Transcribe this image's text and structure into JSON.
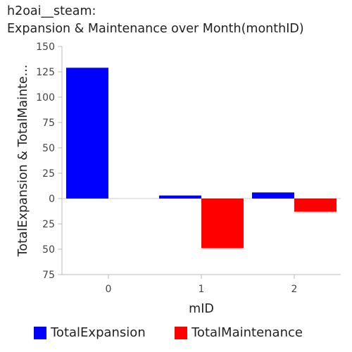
{
  "title_lines": [
    "h2oai__steam:",
    "Expansion & Maintenance over Month(monthID)"
  ],
  "chart_data": {
    "type": "bar",
    "title": "h2oai__steam: Expansion & Maintenance over Month(monthID)",
    "xlabel": "mID",
    "ylabel": "TotalExpansion & TotalMainte...",
    "categories": [
      "0",
      "1",
      "2"
    ],
    "ylim": [
      -75,
      150
    ],
    "y_ticks": [
      150,
      125,
      100,
      75,
      50,
      25,
      0,
      -25,
      -50,
      -75
    ],
    "y_tick_labels": [
      "150",
      "125",
      "100",
      "75",
      "50",
      "25",
      "0",
      "25",
      "50",
      "75"
    ],
    "series": [
      {
        "name": "TotalExpansion",
        "color": "#0000ff",
        "values": [
          129,
          3,
          6
        ]
      },
      {
        "name": "TotalMaintenance",
        "color": "#ff0000",
        "values": [
          0,
          -49,
          -13
        ]
      }
    ],
    "grid": false,
    "legend": "bottom"
  }
}
